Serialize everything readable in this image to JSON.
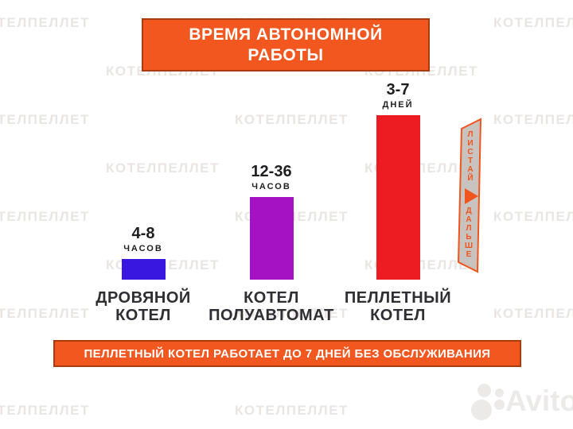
{
  "title_banner": {
    "line1": "ВРЕМЯ АВТОНОМНОЙ",
    "line2": "РАБОТЫ"
  },
  "bars": [
    {
      "value": "4-8",
      "unit": "ЧАСОВ",
      "cat1": "ДРОВЯНОЙ",
      "cat2": "КОТЕЛ",
      "color": "#3a17e0"
    },
    {
      "value": "12-36",
      "unit": "ЧАСОВ",
      "cat1": "КОТЕЛ",
      "cat2": "ПОЛУАВТОМАТ",
      "color": "#a512c4"
    },
    {
      "value": "3-7",
      "unit": "ДНЕЙ",
      "cat1": "ПЕЛЛЕТНЫЙ",
      "cat2": "КОТЕЛ",
      "color": "#ed1b22"
    }
  ],
  "footer_banner": {
    "text": "ПЕЛЛЕТНЫЙ КОТЕЛ РАБОТАЕТ ДО 7 ДНЕЙ БЕЗ ОБСЛУЖИВАНИЯ"
  },
  "ribbon": {
    "word1": "ЛИСТАЙ",
    "word2": "ДАЛЬШЕ"
  },
  "watermark": {
    "text": "КОТЕЛПЕЛЛЕТ"
  },
  "avito": {
    "text": "Avito"
  },
  "colors": {
    "banner_bg": "#f2571f",
    "banner_border": "#a83c10",
    "ribbon_fill": "#c9c3c0",
    "ribbon_accent": "#f0551e",
    "watermark": "#e8e5e3",
    "avito_watermark": "#eceae9"
  },
  "chart_data": {
    "type": "bar",
    "title": "ВРЕМЯ АВТОНОМНОЙ РАБОТЫ",
    "categories": [
      "ДРОВЯНОЙ КОТЕЛ",
      "КОТЕЛ ПОЛУАВТОМАТ",
      "ПЕЛЛЕТНЫЙ КОТЕЛ"
    ],
    "series": [
      {
        "name": "Время автономной работы",
        "values": [
          "4-8 ЧАСОВ",
          "12-36 ЧАСОВ",
          "3-7 ДНЕЙ"
        ],
        "values_hours_range": [
          [
            4,
            8
          ],
          [
            12,
            36
          ],
          [
            72,
            168
          ]
        ]
      }
    ],
    "bar_colors": [
      "#3a17e0",
      "#a512c4",
      "#ed1b22"
    ],
    "annotation": "ПЕЛЛЕТНЫЙ КОТЕЛ РАБОТАЕТ ДО 7 ДНЕЙ БЕЗ ОБСЛУЖИВАНИЯ",
    "xlabel": "",
    "ylabel": "",
    "legend_position": "none",
    "grid": false,
    "axes_visible": false
  }
}
